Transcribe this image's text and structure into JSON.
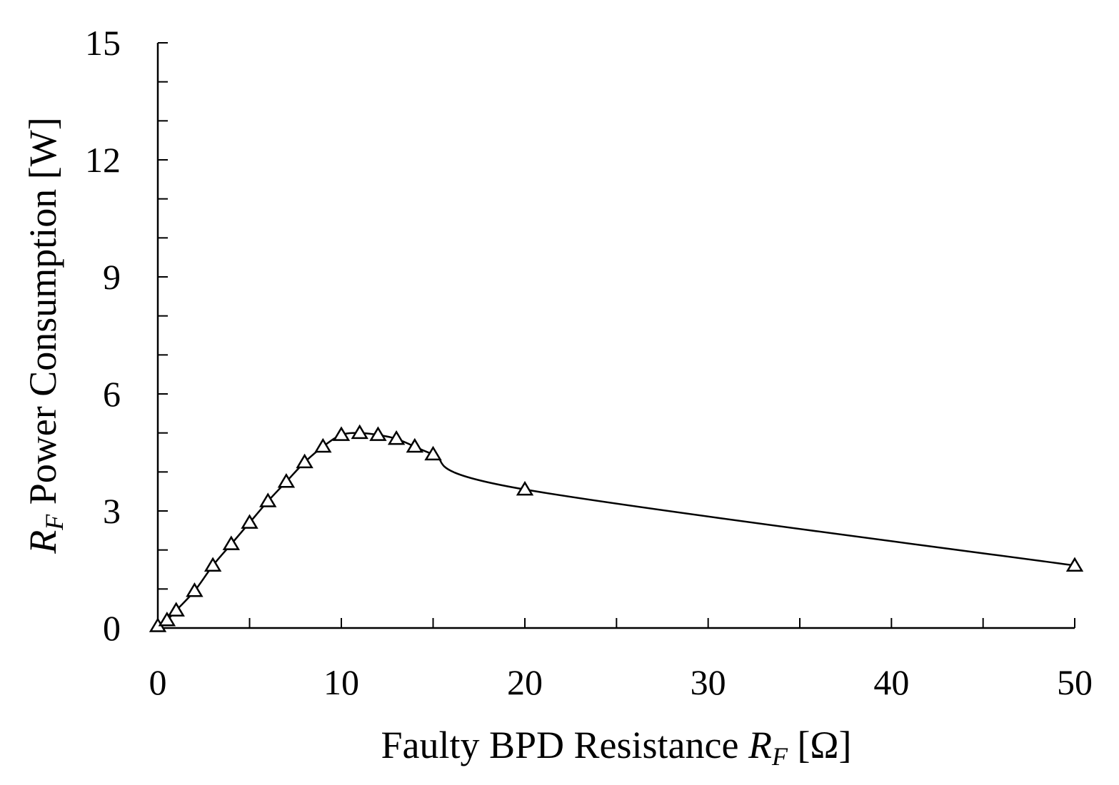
{
  "chart_data": {
    "type": "line",
    "title": "",
    "xlabel": {
      "prefix": "Faulty BPD Resistance ",
      "symbol": "R",
      "subscript": "F",
      "suffix": " [Ω]"
    },
    "ylabel": {
      "symbol": "R",
      "subscript": "F",
      "suffix": " Power Consumption [W]"
    },
    "x_ticks": [
      {
        "value": 0,
        "label": "0"
      },
      {
        "value": 10,
        "label": "10"
      },
      {
        "value": 20,
        "label": "20"
      },
      {
        "value": 30,
        "label": "30"
      },
      {
        "value": 40,
        "label": "40"
      },
      {
        "value": 50,
        "label": "50"
      }
    ],
    "x_ticks_minor": [
      5,
      15,
      25,
      35,
      45
    ],
    "y_ticks": [
      {
        "value": 0,
        "label": "0"
      },
      {
        "value": 3,
        "label": "3"
      },
      {
        "value": 6,
        "label": "6"
      },
      {
        "value": 9,
        "label": "9"
      },
      {
        "value": 12,
        "label": "12"
      },
      {
        "value": 15,
        "label": "15"
      }
    ],
    "y_ticks_minor": [
      1,
      2,
      4,
      5,
      7,
      8,
      10,
      11,
      13,
      14
    ],
    "xlim": [
      0,
      50
    ],
    "ylim": [
      0,
      15
    ],
    "grid": false,
    "legend": "none",
    "x_axis_note": "piecewise: linear 0–20, compressed 20–50 (20, 30, 40, 50 evenly spaced after 20)",
    "series": [
      {
        "name": "",
        "marker": "triangle-open",
        "color": "#000000",
        "x": [
          0,
          0.5,
          1,
          2,
          3,
          4,
          5,
          6,
          7,
          8,
          9,
          10,
          11,
          12,
          13,
          14,
          15,
          20,
          50
        ],
        "y": [
          0.05,
          0.2,
          0.45,
          0.95,
          1.6,
          2.15,
          2.7,
          3.25,
          3.75,
          4.25,
          4.65,
          4.95,
          5.0,
          4.95,
          4.85,
          4.65,
          4.45,
          3.55,
          1.6
        ]
      }
    ]
  }
}
